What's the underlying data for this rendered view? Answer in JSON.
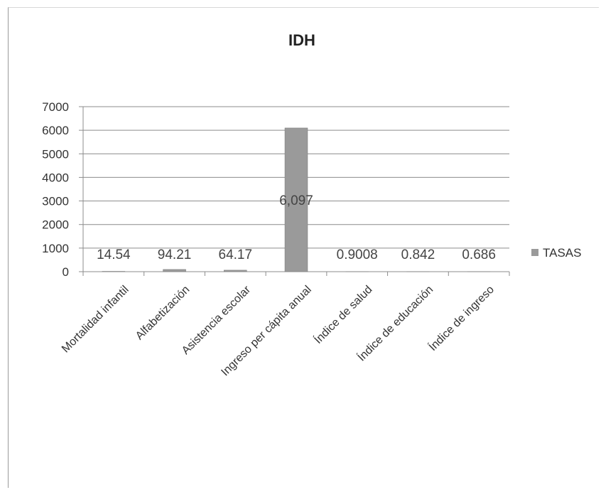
{
  "chart_data": {
    "type": "bar",
    "title": "IDH",
    "xlabel": "",
    "ylabel": "",
    "ylim": [
      0,
      7000
    ],
    "yticks": [
      0,
      1000,
      2000,
      3000,
      4000,
      5000,
      6000,
      7000
    ],
    "grid": true,
    "legend_position": "right",
    "categories": [
      "Mortalidad infantil",
      "Alfabetización",
      "Asistencia escolar",
      "Ingreso per cápita anual",
      "Índice de salud",
      "Índice de educación",
      "Índice de ingreso"
    ],
    "series": [
      {
        "name": "TASAS",
        "values": [
          14.54,
          94.21,
          64.17,
          6097,
          0.9008,
          0.842,
          0.686
        ],
        "data_labels": [
          "14.54",
          "94.21",
          "64.17",
          "6,097",
          "0.9008",
          "0.842",
          "0.686"
        ],
        "color": "#9a9a9a"
      }
    ]
  }
}
